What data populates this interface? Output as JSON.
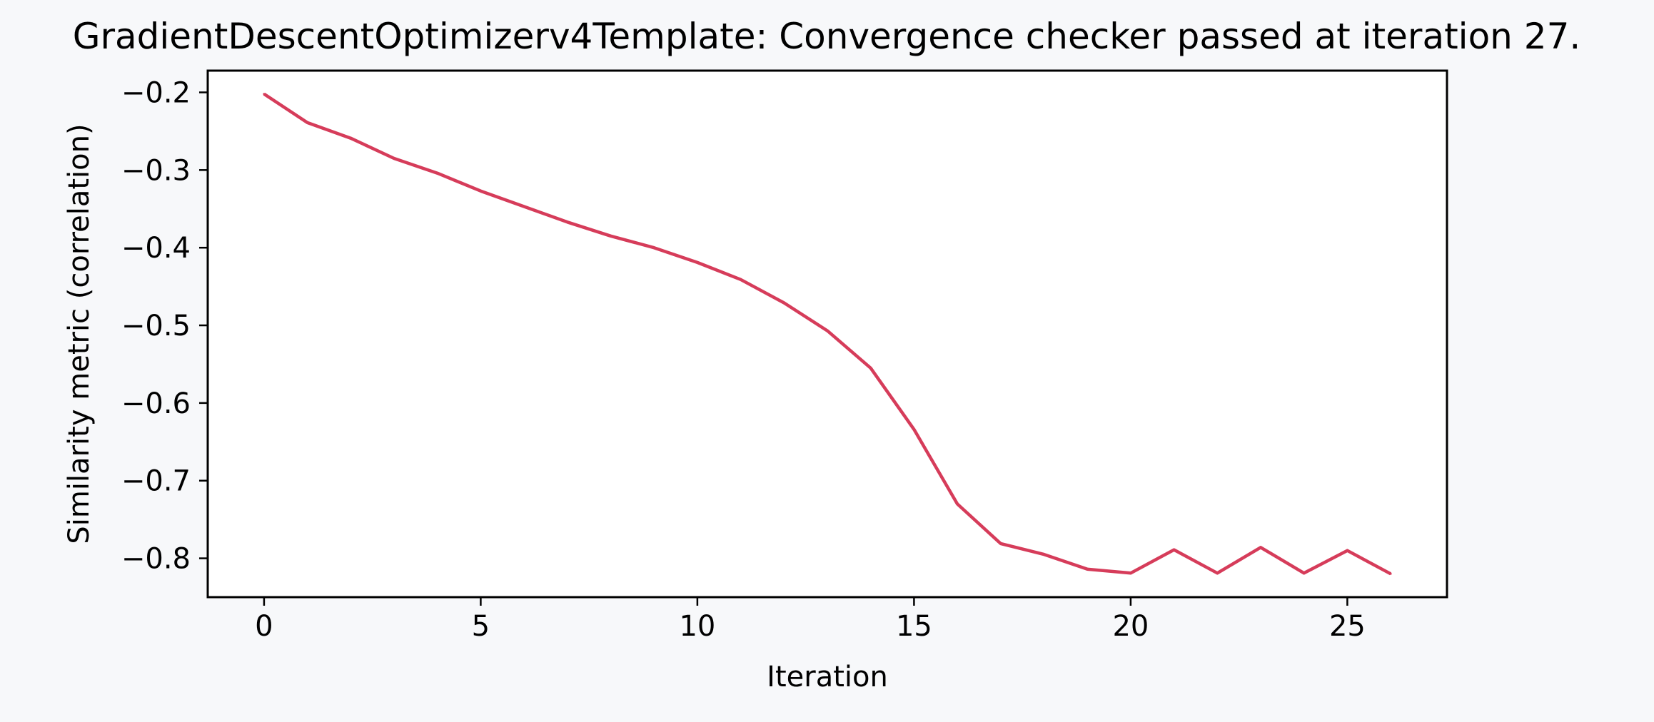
{
  "colors": {
    "background": "#f7f8fa",
    "plot_background": "#ffffff",
    "line": "#d63c5a",
    "axis": "#000000"
  },
  "chart_data": {
    "type": "line",
    "title": "GradientDescentOptimizerv4Template: Convergence checker passed at iteration 27.",
    "xlabel": "Iteration",
    "ylabel": "Similarity metric (correlation)",
    "xlim": [
      -1.3,
      27.3
    ],
    "ylim": [
      -0.85,
      -0.172
    ],
    "xticks": [
      0,
      5,
      10,
      15,
      20,
      25
    ],
    "yticks": [
      -0.2,
      -0.3,
      -0.4,
      -0.5,
      -0.6,
      -0.7,
      -0.8
    ],
    "grid": false,
    "series": [
      {
        "x": [
          0,
          1,
          2,
          3,
          4,
          5,
          6,
          7,
          8,
          9,
          10,
          11,
          12,
          13,
          14,
          15,
          16,
          17,
          18,
          19,
          20,
          21,
          22,
          23,
          24,
          25,
          26
        ],
        "y": [
          -0.202,
          -0.239,
          -0.259,
          -0.285,
          -0.304,
          -0.327,
          -0.347,
          -0.367,
          -0.385,
          -0.4,
          -0.419,
          -0.441,
          -0.471,
          -0.507,
          -0.555,
          -0.634,
          -0.73,
          -0.781,
          -0.795,
          -0.814,
          -0.819,
          -0.789,
          -0.819,
          -0.786,
          -0.819,
          -0.79,
          -0.82
        ]
      }
    ]
  }
}
